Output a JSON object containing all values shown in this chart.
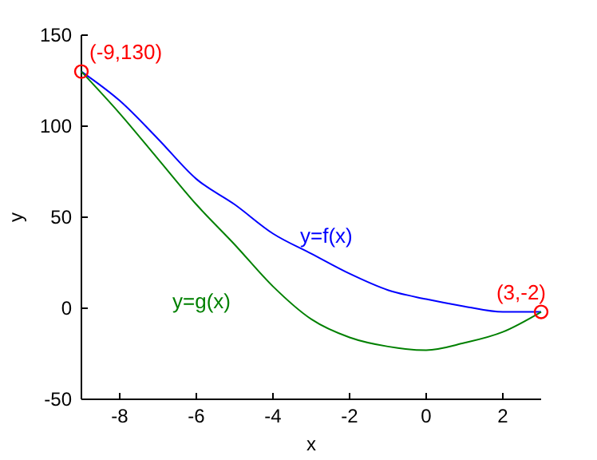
{
  "chart_data": {
    "type": "line",
    "xlabel": "x",
    "ylabel": "y",
    "xlim": [
      -9,
      3
    ],
    "ylim": [
      -50,
      150
    ],
    "xticks": [
      -8,
      -6,
      -4,
      -2,
      0,
      2
    ],
    "yticks": [
      -50,
      0,
      50,
      100,
      150
    ],
    "grid": false,
    "legend": false,
    "marker": "none",
    "line_style": "solid",
    "series": [
      {
        "name": "y=f(x)",
        "color": "#0000ff",
        "x": [
          -9,
          -8,
          -7,
          -6,
          -5,
          -4,
          -3,
          -2,
          -1,
          0,
          1,
          2,
          3
        ],
        "values": [
          130,
          114,
          93,
          71,
          57,
          41,
          30,
          19,
          10,
          5,
          1,
          -2,
          -2
        ]
      },
      {
        "name": "y=g(x)",
        "color": "#008000",
        "x": [
          -9,
          -8,
          -7,
          -6,
          -5,
          -4,
          -3,
          -2,
          -1,
          0,
          1,
          2,
          3
        ],
        "values": [
          130,
          107,
          82,
          57,
          35,
          12,
          -6,
          -16,
          -21,
          -23,
          -19,
          -13,
          -2
        ]
      },
      {
        "type": "scatter",
        "marker": "circle",
        "color": "#ff0000",
        "x": [
          -9,
          3
        ],
        "values": [
          130,
          -2
        ]
      }
    ],
    "annotations": [
      {
        "text": "(-9,130)",
        "x": -9,
        "y": 130
      },
      {
        "text": "(3,-2)",
        "x": 3,
        "y": -2
      }
    ]
  }
}
